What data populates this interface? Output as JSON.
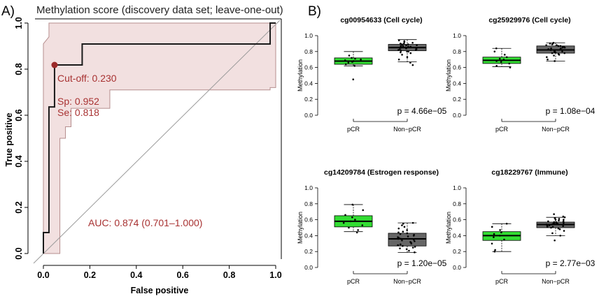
{
  "panel_a": {
    "panel_label": "A)",
    "chart_data": {
      "type": "line",
      "title": "Methylation score (discovery data set; leave-one-out)",
      "xlabel": "False positive",
      "ylabel": "True positive",
      "xlim": [
        0,
        1
      ],
      "ylim": [
        0,
        1
      ],
      "x_ticks": [
        "0.0",
        "0.2",
        "0.4",
        "0.6",
        "0.8",
        "1.0"
      ],
      "y_ticks": [
        "0.0",
        "0.2",
        "0.4",
        "0.6",
        "0.8",
        "1.0"
      ],
      "roc_curve": [
        [
          0,
          0
        ],
        [
          0,
          0.091
        ],
        [
          0.024,
          0.091
        ],
        [
          0.024,
          0.636
        ],
        [
          0.048,
          0.636
        ],
        [
          0.048,
          0.818
        ],
        [
          0.167,
          0.818
        ],
        [
          0.167,
          0.909
        ],
        [
          0.976,
          0.909
        ],
        [
          0.976,
          1.0
        ],
        [
          1.0,
          1.0
        ]
      ],
      "ci_upper": [
        [
          0,
          0.91
        ],
        [
          0.024,
          0.94
        ],
        [
          0.024,
          1.0
        ],
        [
          1.0,
          1.0
        ]
      ],
      "ci_lower": [
        [
          1.0,
          0.72
        ],
        [
          0.976,
          0.72
        ],
        [
          0.976,
          0.71
        ],
        [
          0.286,
          0.71
        ],
        [
          0.286,
          0.63
        ],
        [
          0.119,
          0.63
        ],
        [
          0.119,
          0.55
        ],
        [
          0.095,
          0.55
        ],
        [
          0.095,
          0.5
        ],
        [
          0.071,
          0.5
        ],
        [
          0.071,
          0.0
        ],
        [
          0.0,
          0.0
        ]
      ],
      "cutoff_point": {
        "x": 0.048,
        "y": 0.818
      },
      "annotations": {
        "cutoff": "Cut-off: 0.230",
        "sp": "Sp: 0.952",
        "se": "Se: 0.818",
        "auc": "AUC: 0.874 (0.701–1.000)"
      },
      "colors": {
        "curve": "#1a1a1a",
        "ci_fill": "#f2e0e0",
        "ci_line": "#b58e8e",
        "annotation": "#a83232",
        "marker": "#9b2a2a"
      }
    }
  },
  "panel_b": {
    "panel_label": "B)",
    "chart_data": [
      {
        "type": "box",
        "title": "cg00954633 (Cell cycle)",
        "ylabel": "Methylation",
        "categories": [
          "pCR",
          "Non−pCR"
        ],
        "y_ticks": [
          "0.0",
          "0.2",
          "0.4",
          "0.6",
          "0.8",
          "1.0"
        ],
        "ylim": [
          0,
          1
        ],
        "p_value": "p = 4.66e−05",
        "boxes": [
          {
            "min": 0.62,
            "q1": 0.64,
            "median": 0.68,
            "q3": 0.72,
            "max": 0.8,
            "color": "#33dd33"
          },
          {
            "min": 0.67,
            "q1": 0.81,
            "median": 0.85,
            "q3": 0.89,
            "max": 0.95,
            "color": "#666666"
          }
        ],
        "points": [
          [
            0.45,
            0.62,
            0.64,
            0.66,
            0.67,
            0.68,
            0.69,
            0.7,
            0.71,
            0.72,
            0.75
          ],
          [
            0.63,
            0.66,
            0.7,
            0.73,
            0.76,
            0.78,
            0.79,
            0.8,
            0.8,
            0.81,
            0.82,
            0.82,
            0.83,
            0.83,
            0.84,
            0.84,
            0.85,
            0.85,
            0.86,
            0.86,
            0.87,
            0.87,
            0.88,
            0.88,
            0.89,
            0.89,
            0.9,
            0.9,
            0.91,
            0.92,
            0.93,
            0.94
          ]
        ]
      },
      {
        "type": "box",
        "title": "cg25929976 (Cell cycle)",
        "ylabel": "Methylation",
        "categories": [
          "pCR",
          "Non−pCR"
        ],
        "y_ticks": [
          "0.0",
          "0.2",
          "0.4",
          "0.6",
          "0.8",
          "1.0"
        ],
        "ylim": [
          0,
          1
        ],
        "p_value": "p = 1.08e−04",
        "boxes": [
          {
            "min": 0.61,
            "q1": 0.65,
            "median": 0.69,
            "q3": 0.73,
            "max": 0.84,
            "color": "#33dd33"
          },
          {
            "min": 0.68,
            "q1": 0.78,
            "median": 0.82,
            "q3": 0.87,
            "max": 0.91,
            "color": "#666666"
          }
        ],
        "points": [
          [
            0.6,
            0.62,
            0.65,
            0.67,
            0.68,
            0.7,
            0.71,
            0.73,
            0.76,
            0.8,
            0.84
          ],
          [
            0.68,
            0.7,
            0.73,
            0.75,
            0.76,
            0.77,
            0.78,
            0.78,
            0.79,
            0.79,
            0.8,
            0.8,
            0.81,
            0.81,
            0.82,
            0.82,
            0.83,
            0.83,
            0.84,
            0.84,
            0.85,
            0.85,
            0.86,
            0.86,
            0.87,
            0.87,
            0.88,
            0.88,
            0.89,
            0.9,
            0.9,
            0.91
          ]
        ]
      },
      {
        "type": "box",
        "title": "cg14209784 (Estrogen response)",
        "ylabel": "Methylation",
        "categories": [
          "pCR",
          "Non−pCR"
        ],
        "y_ticks": [
          "0.0",
          "0.2",
          "0.4",
          "0.6",
          "0.8",
          "1.0"
        ],
        "ylim": [
          0,
          1
        ],
        "p_value": "p = 1.20e−05",
        "boxes": [
          {
            "min": 0.45,
            "q1": 0.51,
            "median": 0.58,
            "q3": 0.65,
            "max": 0.79,
            "color": "#33dd33"
          },
          {
            "min": 0.19,
            "q1": 0.27,
            "median": 0.36,
            "q3": 0.43,
            "max": 0.56,
            "color": "#666666"
          }
        ],
        "points": [
          [
            0.44,
            0.47,
            0.5,
            0.53,
            0.56,
            0.58,
            0.6,
            0.63,
            0.66,
            0.72,
            0.79
          ],
          [
            0.19,
            0.21,
            0.23,
            0.24,
            0.25,
            0.26,
            0.27,
            0.28,
            0.29,
            0.3,
            0.31,
            0.32,
            0.33,
            0.34,
            0.35,
            0.36,
            0.36,
            0.37,
            0.38,
            0.39,
            0.4,
            0.41,
            0.42,
            0.43,
            0.44,
            0.45,
            0.47,
            0.49,
            0.51,
            0.53,
            0.55,
            0.56
          ]
        ]
      },
      {
        "type": "box",
        "title": "cg18229767 (Immune)",
        "ylabel": "Methylation",
        "categories": [
          "pCR",
          "Non−pCR"
        ],
        "y_ticks": [
          "0.0",
          "0.2",
          "0.4",
          "0.6",
          "0.8",
          "1.0"
        ],
        "ylim": [
          0,
          1
        ],
        "p_value": "p = 2.77e−03",
        "boxes": [
          {
            "min": 0.2,
            "q1": 0.34,
            "median": 0.4,
            "q3": 0.45,
            "max": 0.55,
            "color": "#33dd33"
          },
          {
            "min": 0.4,
            "q1": 0.5,
            "median": 0.54,
            "q3": 0.57,
            "max": 0.63,
            "color": "#666666"
          }
        ],
        "points": [
          [
            0.2,
            0.22,
            0.3,
            0.35,
            0.38,
            0.4,
            0.42,
            0.44,
            0.47,
            0.51,
            0.55
          ],
          [
            0.34,
            0.4,
            0.43,
            0.46,
            0.48,
            0.49,
            0.5,
            0.51,
            0.51,
            0.52,
            0.52,
            0.53,
            0.53,
            0.54,
            0.54,
            0.55,
            0.55,
            0.55,
            0.56,
            0.56,
            0.57,
            0.57,
            0.58,
            0.58,
            0.59,
            0.6,
            0.6,
            0.61,
            0.62,
            0.63,
            0.64,
            0.67
          ]
        ]
      }
    ]
  }
}
